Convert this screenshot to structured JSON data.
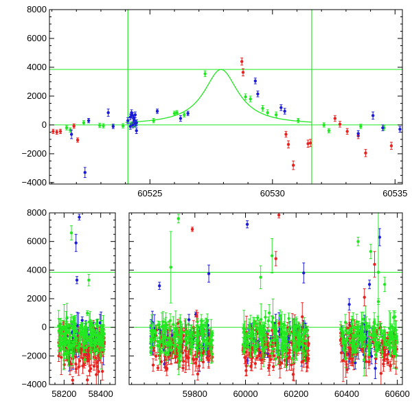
{
  "colors": {
    "red": "#e8221f",
    "green": "#22e822",
    "blue": "#1c1cd8",
    "ref_line": "#22e822",
    "frame": "#000000"
  },
  "chart_data": [
    {
      "type": "scatter",
      "title": "",
      "xlabel": "",
      "ylabel": "",
      "xlim": [
        60520.9,
        60535.3
      ],
      "ylim": [
        -4100,
        8000
      ],
      "x_ticks": [
        60525,
        60530,
        60535
      ],
      "y_ticks": [
        -4000,
        -2000,
        0,
        2000,
        4000,
        6000,
        8000
      ],
      "x_ticks_labels": [
        "60525",
        "60530",
        "60535"
      ],
      "y_ticks_labels": [
        "−4000",
        "−2000",
        "0",
        "2000",
        "4000",
        "6000",
        "8000"
      ],
      "reference_lines": {
        "horizontal": [
          0,
          3850
        ],
        "vertical": [
          60524.1,
          60531.6
        ]
      },
      "model_curve": {
        "shape": "lorentzian",
        "center": 60527.9,
        "peak": 3850,
        "half_width": 0.85,
        "x_range": [
          60524.0,
          60531.6
        ]
      },
      "series": [
        {
          "color": "red",
          "x": [
            60521.05,
            60521.2,
            60521.35,
            60521.9,
            60522.05,
            60528.75,
            60528.8,
            60530.55,
            60530.65,
            60530.85,
            60531.45,
            60531.55,
            60532.55,
            60532.75,
            60533.05,
            60533.5,
            60533.8,
            60534.85
          ],
          "y": [
            -450,
            -500,
            -450,
            -80,
            -1050,
            4400,
            3650,
            -650,
            -1350,
            -2800,
            -1300,
            -1250,
            450,
            50,
            -450,
            -750,
            -1950,
            -1450
          ],
          "err": [
            150,
            150,
            150,
            150,
            150,
            250,
            250,
            200,
            250,
            300,
            250,
            250,
            200,
            200,
            200,
            200,
            250,
            250
          ]
        },
        {
          "color": "green",
          "x": [
            60521.6,
            60521.75,
            60522.3,
            60522.95,
            60523.1,
            60523.9,
            60524.25,
            60524.35,
            60524.45,
            60525.15,
            60526.0,
            60526.1,
            60526.4,
            60527.25,
            60528.9,
            60529.1,
            60529.6,
            60529.8,
            60530.15,
            60531.05,
            60532.1,
            60532.3,
            60533.6,
            60534.55
          ],
          "y": [
            -200,
            -350,
            150,
            -30,
            -60,
            -60,
            50,
            0,
            200,
            300,
            800,
            850,
            700,
            3550,
            1950,
            1800,
            1150,
            850,
            700,
            300,
            0,
            -400,
            -100,
            -200
          ],
          "err": [
            150,
            150,
            150,
            150,
            150,
            150,
            150,
            150,
            150,
            150,
            150,
            150,
            150,
            200,
            200,
            200,
            200,
            200,
            200,
            150,
            150,
            150,
            150,
            150
          ]
        },
        {
          "color": "blue",
          "x": [
            60521.8,
            60522.35,
            60522.5,
            60523.3,
            60523.5,
            60524.1,
            60524.2,
            60524.25,
            60524.3,
            60524.35,
            60524.4,
            60524.45,
            60524.2,
            60524.3,
            60524.4,
            60524.25,
            60524.35,
            60524.45,
            60525.3,
            60526.25,
            60526.55,
            60529.3,
            60529.4,
            60530.35,
            60530.5,
            60533.5,
            60534.1,
            60534.5,
            60535.2
          ],
          "y": [
            -650,
            -3300,
            300,
            850,
            -100,
            300,
            550,
            700,
            650,
            450,
            700,
            150,
            -100,
            0,
            100,
            850,
            350,
            -400,
            950,
            450,
            800,
            3050,
            2150,
            1200,
            950,
            -600,
            650,
            -200,
            -300
          ],
          "err": [
            300,
            350,
            150,
            250,
            150,
            200,
            200,
            200,
            200,
            200,
            200,
            200,
            200,
            200,
            200,
            200,
            200,
            200,
            150,
            200,
            150,
            200,
            200,
            200,
            200,
            200,
            250,
            200,
            200
          ]
        }
      ]
    },
    {
      "type": "scatter",
      "title": "",
      "xlabel": "",
      "ylabel": "",
      "ylim": [
        -4000,
        8000
      ],
      "broken_axis": true,
      "segments": [
        {
          "xlim": [
            58120,
            58480
          ],
          "x_ticks": [
            58200,
            58400
          ]
        },
        {
          "xlim": [
            59540,
            60620
          ],
          "x_ticks": [
            59800,
            60000,
            60200,
            60400,
            60600
          ]
        }
      ],
      "x_ticks_labels": [
        "58200",
        "58400",
        "59800",
        "60000",
        "60200",
        "60400",
        "60600"
      ],
      "y_ticks": [
        -4000,
        -2000,
        0,
        2000,
        4000,
        6000,
        8000
      ],
      "y_ticks_labels": [
        "−4000",
        "−2000",
        "0",
        "2000",
        "4000",
        "6000",
        "8000"
      ],
      "reference_lines": {
        "horizontal": [
          0,
          3850
        ]
      },
      "observing_seasons": [
        [
          58170,
          58420
        ],
        [
          59625,
          59870
        ],
        [
          59990,
          60250
        ],
        [
          60375,
          60600
        ]
      ],
      "notable_points": [
        {
          "color": "green",
          "x": 58240,
          "y": 6600,
          "err": 500
        },
        {
          "color": "blue",
          "x": 58265,
          "y": 5900,
          "err": 600
        },
        {
          "color": "blue",
          "x": 58283,
          "y": 7700,
          "err": 200
        },
        {
          "color": "blue",
          "x": 58270,
          "y": 3300,
          "err": 250
        },
        {
          "color": "green",
          "x": 58335,
          "y": 3300,
          "err": 400
        },
        {
          "color": "blue",
          "x": 59660,
          "y": 2900,
          "err": 250
        },
        {
          "color": "green",
          "x": 59735,
          "y": 7600,
          "err": 300
        },
        {
          "color": "green",
          "x": 59705,
          "y": 4200,
          "err": 2500
        },
        {
          "color": "red",
          "x": 59790,
          "y": 6850,
          "err": 150
        },
        {
          "color": "blue",
          "x": 59855,
          "y": 3750,
          "err": 600
        },
        {
          "color": "blue",
          "x": 60007,
          "y": 7200,
          "err": 250
        },
        {
          "color": "red",
          "x": 60132,
          "y": 7850,
          "err": 200
        },
        {
          "color": "red",
          "x": 60120,
          "y": 4800,
          "err": 500
        },
        {
          "color": "green",
          "x": 60105,
          "y": 5000,
          "err": 1200
        },
        {
          "color": "green",
          "x": 60060,
          "y": 3500,
          "err": 800
        },
        {
          "color": "blue",
          "x": 60230,
          "y": 3800,
          "err": 700
        },
        {
          "color": "green",
          "x": 60445,
          "y": 6000,
          "err": 300
        },
        {
          "color": "green",
          "x": 60495,
          "y": 5300,
          "err": 500
        },
        {
          "color": "red",
          "x": 60510,
          "y": 4400,
          "err": 900
        },
        {
          "color": "blue",
          "x": 60530,
          "y": 6300,
          "err": 600
        },
        {
          "color": "green",
          "x": 60525,
          "y": 3850,
          "err": 4500
        },
        {
          "color": "green",
          "x": 60525,
          "y": 1800,
          "err": 200
        },
        {
          "color": "blue",
          "x": 60490,
          "y": 3000,
          "err": 300
        },
        {
          "color": "blue",
          "x": 60410,
          "y": 1600,
          "err": 400
        },
        {
          "color": "red",
          "x": 60470,
          "y": 2100,
          "err": 600
        },
        {
          "color": "green",
          "x": 60550,
          "y": 3000,
          "err": 500
        }
      ]
    }
  ]
}
